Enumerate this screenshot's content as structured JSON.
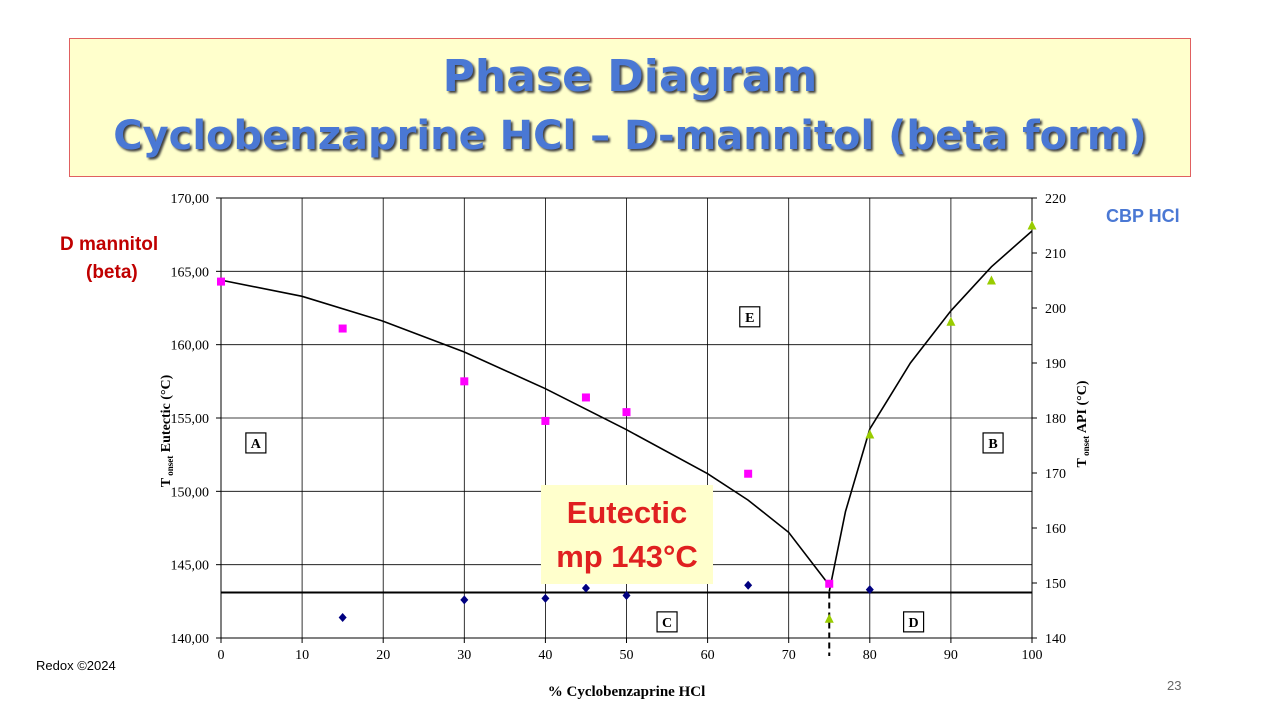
{
  "slide": {
    "title_line1": "Phase Diagram",
    "title_line2": "Cyclobenzaprine HCl – D-mannitol (beta form)",
    "left_compound_line1": "D mannitol",
    "left_compound_line2": "(beta)",
    "right_compound": "CBP HCl",
    "callout_line1": "Eutectic",
    "callout_line2": "mp 143°C",
    "footer": "Redox ©2024",
    "page_number": "23"
  },
  "colors": {
    "title": "#4a78d4",
    "title_box_bg": "#ffffcc",
    "title_box_border": "#e06060",
    "mannitol_series": "#ff00ff",
    "eutectic_series": "#000080",
    "api_series": "#99cc00",
    "left_label": "#c00000",
    "callout_text": "#e02020"
  },
  "chart_data": {
    "type": "scatter",
    "xlabel": "% Cyclobenzaprine HCl",
    "ylabel_left": "T onset Eutectic (°C)",
    "ylabel_right": "T onset API (°C)",
    "ylabel_prefix": "T",
    "ylabel_subscript": "onset",
    "ylabel_left_rest": " Eutectic (°C)",
    "ylabel_right_rest": " API (°C)",
    "xlim": [
      0,
      100
    ],
    "ylim_left": [
      140,
      170
    ],
    "ylim_right": [
      140,
      220
    ],
    "x_ticks": [
      "0",
      "10",
      "20",
      "30",
      "40",
      "50",
      "60",
      "70",
      "80",
      "90",
      "100"
    ],
    "y_left_ticks": [
      "140,00",
      "145,00",
      "150,00",
      "155,00",
      "160,00",
      "165,00",
      "170,00"
    ],
    "y_right_ticks": [
      "140",
      "150",
      "160",
      "170",
      "180",
      "190",
      "200",
      "210",
      "220"
    ],
    "grid": true,
    "eutectic_line_y": 143.1,
    "eutectic_composition_x": 75,
    "series": [
      {
        "axis": "left",
        "marker": "square",
        "color": "#ff00ff",
        "points": [
          [
            0,
            164.3
          ],
          [
            15,
            161.1
          ],
          [
            30,
            157.5
          ],
          [
            40,
            154.8
          ],
          [
            45,
            156.4
          ],
          [
            50,
            155.4
          ],
          [
            65,
            151.2
          ],
          [
            75,
            143.7
          ]
        ]
      },
      {
        "axis": "left",
        "marker": "diamond",
        "color": "#000080",
        "points": [
          [
            15,
            141.4
          ],
          [
            30,
            142.6
          ],
          [
            40,
            142.7
          ],
          [
            45,
            143.4
          ],
          [
            50,
            142.9
          ],
          [
            65,
            143.6
          ],
          [
            80,
            143.3
          ]
        ]
      },
      {
        "axis": "right",
        "marker": "triangle",
        "color": "#99cc00",
        "points": [
          [
            75,
            143.5
          ],
          [
            80,
            177
          ],
          [
            90,
            197.5
          ],
          [
            95,
            205
          ],
          [
            100,
            215
          ]
        ]
      }
    ],
    "liquidus_left": [
      [
        0,
        164.4
      ],
      [
        10,
        163.3
      ],
      [
        20,
        161.6
      ],
      [
        30,
        159.5
      ],
      [
        40,
        157.0
      ],
      [
        50,
        154.2
      ],
      [
        60,
        151.2
      ],
      [
        65,
        149.4
      ],
      [
        70,
        147.2
      ],
      [
        75,
        143.6
      ]
    ],
    "liquidus_right": [
      [
        75,
        148.5
      ],
      [
        77,
        163
      ],
      [
        80,
        178
      ],
      [
        85,
        190
      ],
      [
        90,
        199.5
      ],
      [
        95,
        207.5
      ],
      [
        100,
        214
      ]
    ],
    "region_labels": [
      {
        "text": "A",
        "x": 4.3,
        "y": 153.3
      },
      {
        "text": "B",
        "x": 95.2,
        "y": 153.3
      },
      {
        "text": "C",
        "x": 55.0,
        "y": 141.1
      },
      {
        "text": "D",
        "x": 85.4,
        "y": 141.1
      },
      {
        "text": "E",
        "x": 65.2,
        "y": 161.9
      }
    ]
  }
}
